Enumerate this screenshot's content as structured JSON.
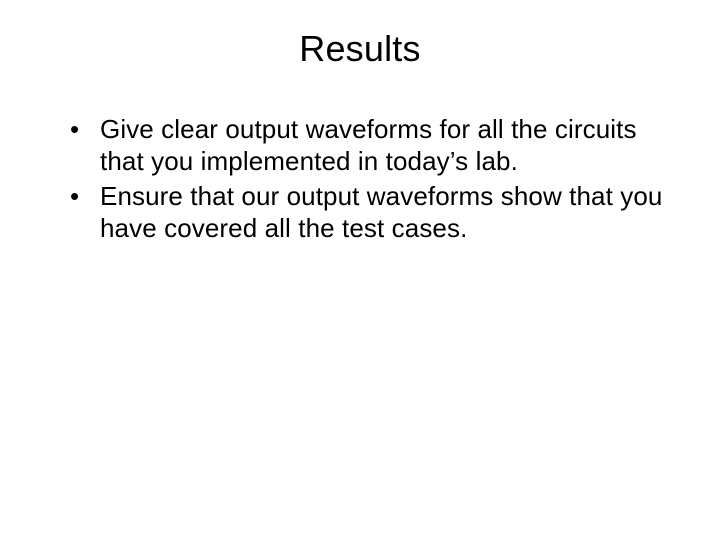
{
  "slide": {
    "title": "Results",
    "bullets": [
      "Give clear output waveforms for all the circuits that you implemented in today’s lab.",
      "Ensure that our output waveforms show that you have covered all the test cases."
    ],
    "title_fontsize": 36,
    "body_fontsize": 26,
    "background_color": "#ffffff",
    "text_color": "#000000",
    "font_family": "Arial"
  }
}
